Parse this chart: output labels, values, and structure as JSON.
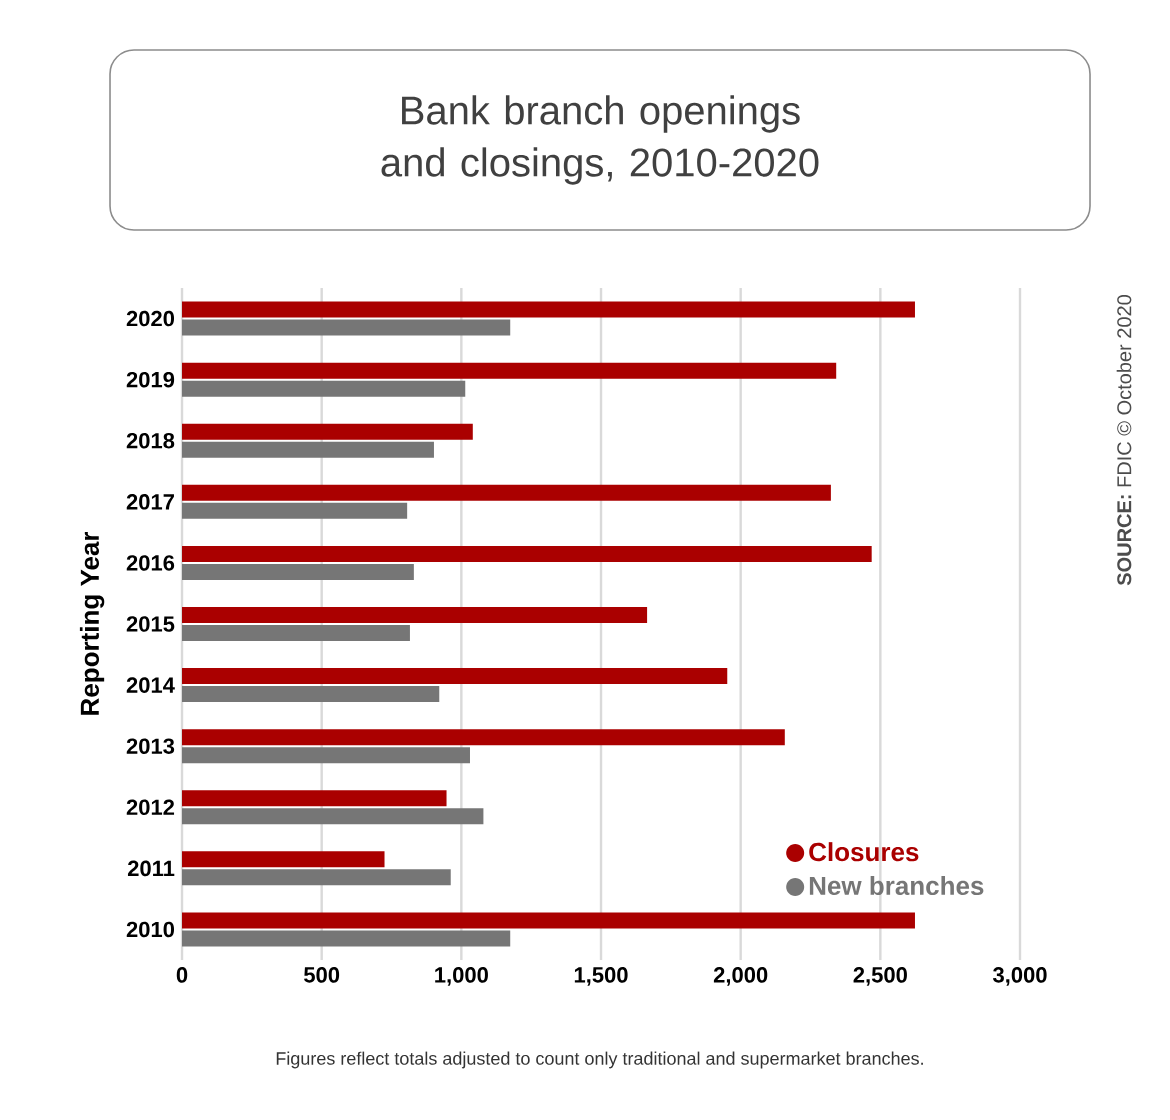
{
  "chart_data": {
    "type": "bar",
    "orientation": "horizontal",
    "title": "Bank branch openings and closings, 2010-2020",
    "ylabel": "Reporting Year",
    "categories": [
      "2020",
      "2019",
      "2018",
      "2017",
      "2016",
      "2015",
      "2014",
      "2013",
      "2012",
      "2011",
      "2010"
    ],
    "series": [
      {
        "name": "Closures",
        "color": "#aa0000",
        "values": [
          2624,
          2342,
          1041,
          2323,
          2469,
          1665,
          1952,
          2158,
          947,
          725,
          2624
        ]
      },
      {
        "name": "New branches",
        "color": "#767676",
        "values": [
          1175,
          1014,
          902,
          806,
          830,
          816,
          921,
          1031,
          1079,
          962,
          1175
        ]
      }
    ],
    "xlim": [
      0,
      3000
    ],
    "xticks": [
      0,
      {
        "value": 500,
        "label": "500"
      },
      {
        "value": 1000,
        "label": "1,000"
      },
      {
        "value": 1500,
        "label": "1,500"
      },
      {
        "value": 2000,
        "label": "2,000"
      },
      {
        "value": 2500,
        "label": "2,500"
      },
      {
        "value": 3000,
        "label": "3,000"
      }
    ],
    "grid": "x",
    "legend": "bottom right",
    "annotations": [
      "**SOURCE:** FDIC © October 2020",
      "Figures reflect totals adjusted to count only traditional and supermarket branches."
    ]
  }
}
